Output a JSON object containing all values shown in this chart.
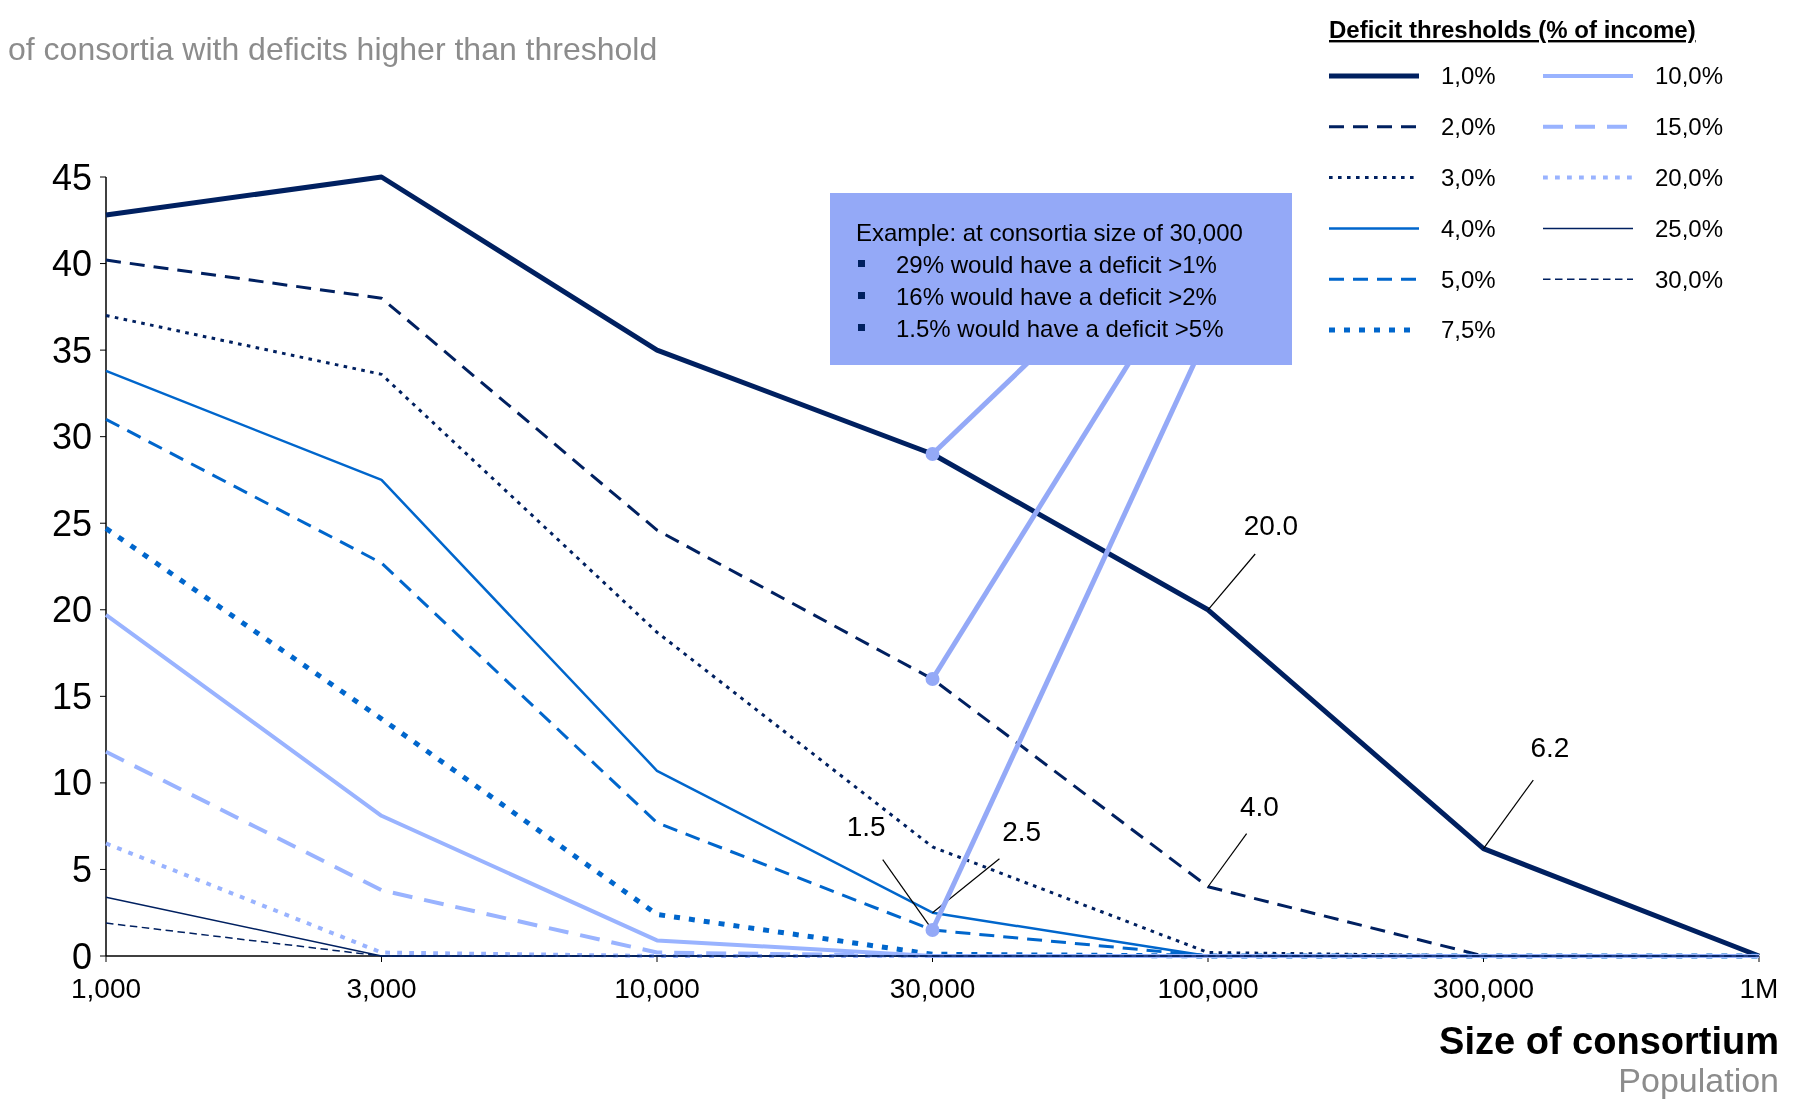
{
  "chart_data": {
    "type": "line",
    "title": "of consortia with deficits higher than threshold",
    "xlabel": "Size of consortium",
    "legend_title": "Deficit thresholds (% of income)",
    "legend": "top right",
    "grid": false,
    "categories": [
      "1,000",
      "3,000",
      "10,000",
      "30,000",
      "100,000",
      "300,000",
      "1M"
    ],
    "ylim": [
      0,
      45
    ],
    "yticks": [
      0,
      5,
      10,
      15,
      20,
      25,
      30,
      35,
      40,
      45
    ],
    "series": [
      {
        "name": "1,0%",
        "color": "#002060",
        "line_style": "solid",
        "values": [
          42.8,
          45,
          35,
          29,
          20,
          6.2,
          0
        ]
      },
      {
        "name": "2,0%",
        "color": "#002060",
        "line_style": "dashed",
        "values": [
          40.2,
          38,
          24.6,
          16,
          4,
          0,
          0
        ]
      },
      {
        "name": "3,0%",
        "color": "#002060",
        "line_style": "dotted",
        "values": [
          37,
          33.6,
          18.7,
          6.3,
          0.2,
          0,
          0
        ]
      },
      {
        "name": "4,0%",
        "color": "#0066cc",
        "line_style": "solid",
        "values": [
          33.8,
          27.5,
          10.7,
          2.5,
          0,
          0,
          0
        ]
      },
      {
        "name": "5,0%",
        "color": "#0066cc",
        "line_style": "dashed",
        "values": [
          31,
          22.7,
          7.7,
          1.5,
          0,
          0,
          0
        ]
      },
      {
        "name": "7,5%",
        "color": "#0066cc",
        "line_style": "dotted",
        "values": [
          24.7,
          13.7,
          2.4,
          0.1,
          0,
          0,
          0
        ]
      },
      {
        "name": "10,0%",
        "color": "#99b3ff",
        "line_style": "solid",
        "values": [
          19.7,
          8.1,
          0.9,
          0,
          0,
          0,
          0
        ]
      },
      {
        "name": "15,0%",
        "color": "#99b3ff",
        "line_style": "dashed",
        "values": [
          11.8,
          3.8,
          0.2,
          0,
          0,
          0,
          0
        ]
      },
      {
        "name": "20,0%",
        "color": "#99b3ff",
        "line_style": "dotted",
        "values": [
          6.5,
          0.2,
          0,
          0,
          0,
          0,
          0
        ]
      },
      {
        "name": "25,0%",
        "color": "#002060",
        "line_style": "solid",
        "values": [
          3.4,
          0,
          0,
          0,
          0,
          0,
          0
        ]
      },
      {
        "name": "30,0%",
        "color": "#002060",
        "line_style": "dashed",
        "values": [
          1.9,
          0,
          0,
          0,
          0,
          0,
          0
        ]
      }
    ],
    "annotations": [
      "Example: at consortia size of 30,000",
      {
        "text": "29% would have a deficit >1%",
        "x": "30,000",
        "y": 29
      },
      {
        "text": "16% would have a deficit >2%",
        "x": "30,000",
        "y": 16
      },
      {
        "text": "1.5% would have a deficit >5%",
        "x": "30,000",
        "y": 1.5
      },
      {
        "text": "20.0",
        "x": "100,000",
        "y": 20
      },
      {
        "text": "6.2",
        "x": "300,000",
        "y": 6.2
      },
      {
        "text": "4.0",
        "x": "100,000",
        "y": 4
      },
      {
        "text": "1.5",
        "x": "30,000",
        "y": 1.5
      },
      {
        "text": "2.5",
        "x": "30,000",
        "y": 2.5
      },
      "Population"
    ]
  }
}
